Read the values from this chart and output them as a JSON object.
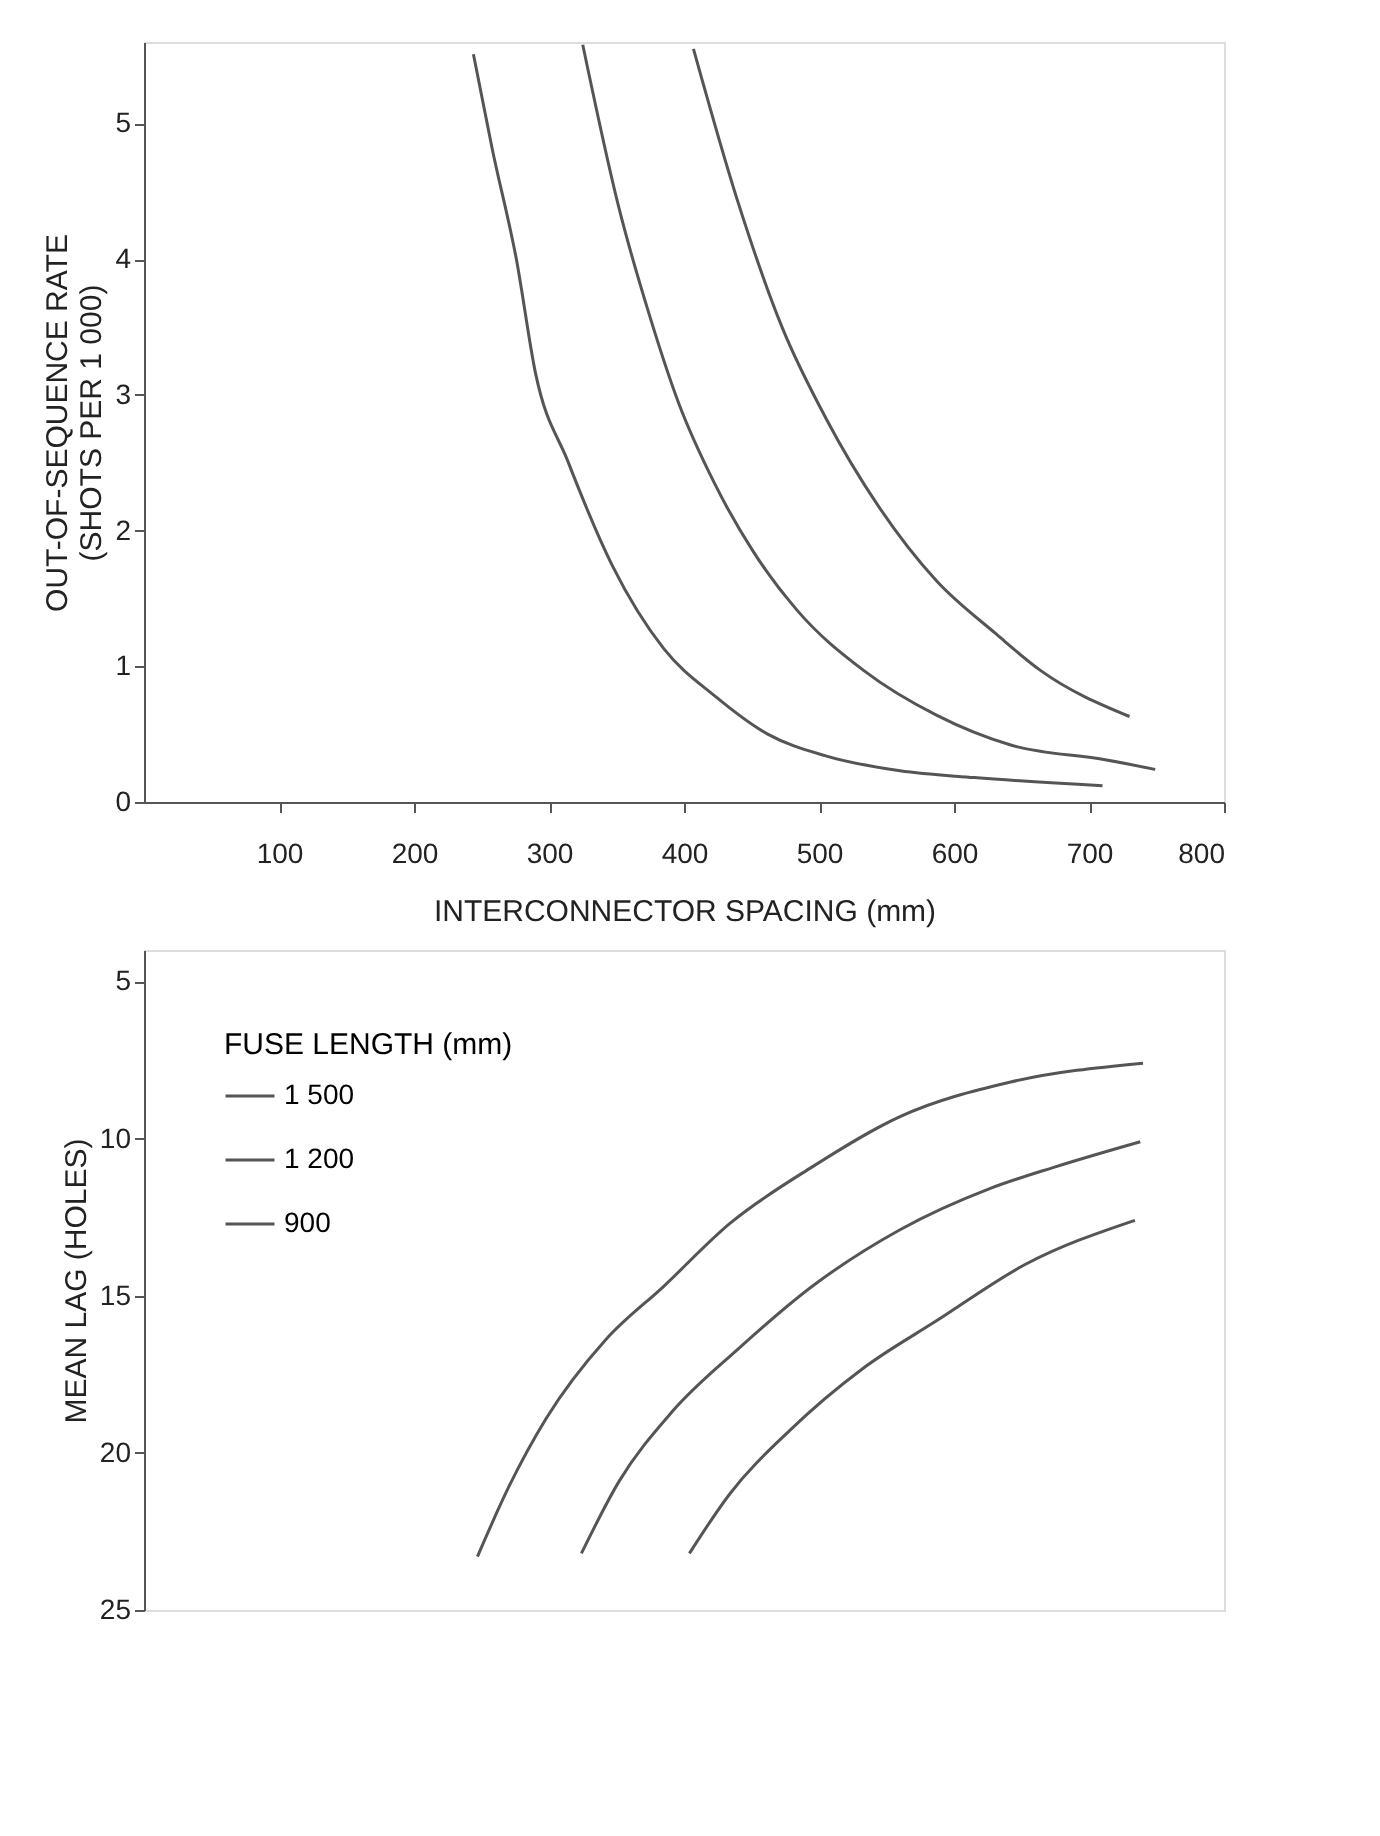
{
  "chart_data": [
    {
      "type": "line",
      "xlabel": "INTERCONNECTOR SPACING (mm)",
      "ylabel": "OUT-OF-SEQUENCE RATE (SHOTS PER 1 000)",
      "xlim": [
        0,
        800
      ],
      "xticks": [
        100,
        200,
        300,
        400,
        500,
        600,
        700,
        800
      ],
      "ylim": [
        0,
        5.6
      ],
      "yticks": [
        0,
        1,
        2,
        3,
        4,
        5
      ],
      "grid": false,
      "legend": false,
      "marker": "none",
      "line_style": "solid",
      "series": [
        {
          "color": "#555555",
          "x": [
            244,
            258,
            276,
            290,
            314,
            347,
            385,
            423,
            462,
            505,
            560,
            615,
            710
          ],
          "values": [
            5.51,
            4.81,
            3.99,
            3.16,
            2.51,
            1.74,
            1.13,
            0.78,
            0.5,
            0.34,
            0.23,
            0.18,
            0.12
          ]
        },
        {
          "color": "#555555",
          "x": [
            325,
            352,
            374,
            396,
            423,
            451,
            484,
            533,
            587,
            642,
            713,
            749
          ],
          "values": [
            5.58,
            4.37,
            3.6,
            2.94,
            2.34,
            1.85,
            1.41,
            0.97,
            0.64,
            0.42,
            0.31,
            0.24
          ]
        },
        {
          "color": "#555555",
          "x": [
            407,
            440,
            473,
            505,
            544,
            587,
            631,
            664,
            730
          ],
          "values": [
            5.55,
            4.42,
            3.49,
            2.83,
            2.18,
            1.63,
            1.24,
            0.97,
            0.63
          ]
        }
      ]
    },
    {
      "type": "line",
      "ylabel": "MEAN LAG (HOLES)",
      "legend_title": "FUSE LENGTH (mm)",
      "xlim": [
        0,
        800
      ],
      "ylim": [
        25,
        4
      ],
      "yticks": [
        5,
        10,
        15,
        20,
        25
      ],
      "tick_labels": "y",
      "grid": false,
      "legend": "top left",
      "marker": "none",
      "line_style": "solid",
      "series": [
        {
          "name": "1 500",
          "color": "#555555",
          "x": [
            247,
            270,
            298,
            342,
            385,
            434,
            495,
            560,
            642,
            740
          ],
          "values": [
            23.3,
            21.1,
            18.9,
            16.4,
            14.7,
            12.7,
            10.9,
            9.3,
            8.2,
            7.6
          ]
        },
        {
          "name": "1 200",
          "color": "#555555",
          "x": [
            324,
            352,
            391,
            440,
            495,
            560,
            626,
            675,
            738
          ],
          "values": [
            23.2,
            20.9,
            18.7,
            16.7,
            14.7,
            12.9,
            11.6,
            10.9,
            10.1
          ]
        },
        {
          "name": "900",
          "color": "#555555",
          "x": [
            404,
            434,
            478,
            533,
            587,
            653,
            734
          ],
          "values": [
            23.2,
            21.3,
            19.3,
            17.3,
            15.8,
            14.0,
            12.6
          ]
        }
      ]
    }
  ]
}
